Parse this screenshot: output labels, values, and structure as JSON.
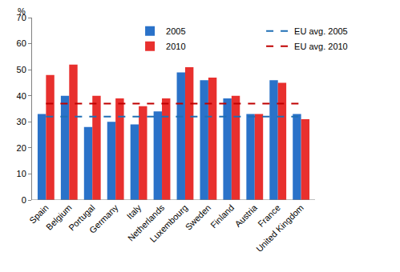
{
  "chart_data": {
    "type": "bar",
    "y_label": "%",
    "categories": [
      "Spain",
      "Belgium",
      "Portugal",
      "Germany",
      "Italy",
      "Netherlands",
      "Luxembourg",
      "Sweden",
      "Finland",
      "Austria",
      "France",
      "United Kingdom"
    ],
    "series": [
      {
        "name": "2005",
        "type": "bar",
        "color": "#2a72c9",
        "values": [
          33,
          40,
          28,
          30,
          29,
          34,
          49,
          46,
          39,
          33,
          46,
          33
        ]
      },
      {
        "name": "EU avg. 2005",
        "type": "line",
        "line_style": "dashed",
        "color": "#1f6fb5",
        "values": [
          32,
          32,
          32,
          32,
          32,
          32,
          32,
          32,
          32,
          32,
          32,
          32
        ]
      },
      {
        "name": "2010",
        "type": "bar",
        "color": "#e8302e",
        "values": [
          48,
          52,
          40,
          39,
          36,
          39,
          51,
          47,
          40,
          33,
          45,
          31
        ]
      },
      {
        "name": "EU avg. 2010",
        "type": "line",
        "line_style": "dashed",
        "color": "#c00000",
        "values": [
          37,
          37,
          37,
          37,
          37,
          37,
          37,
          37,
          37,
          37,
          37,
          37
        ]
      }
    ],
    "ylim": [
      0,
      70
    ],
    "yticks": [
      0,
      10,
      20,
      30,
      40,
      50,
      60,
      70
    ],
    "grid": false,
    "legend": "top right"
  }
}
